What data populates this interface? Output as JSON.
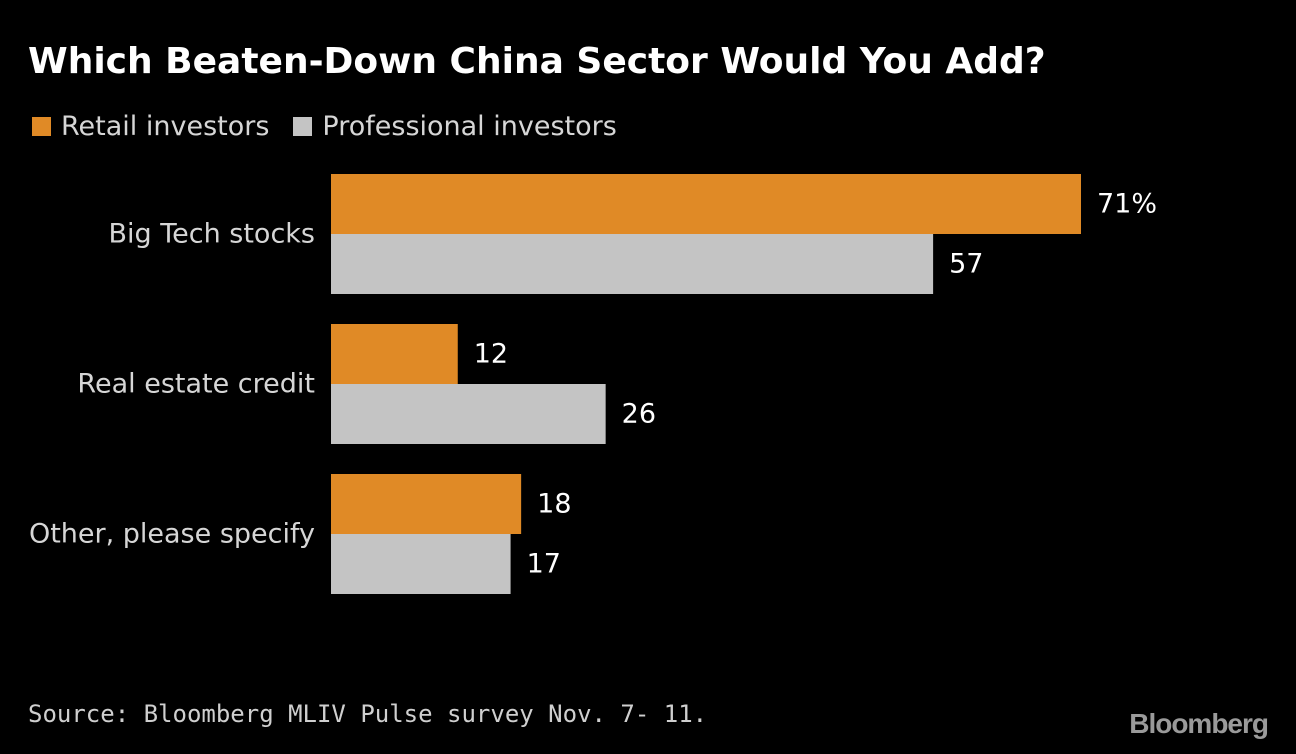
{
  "chart_data": {
    "type": "bar",
    "orientation": "horizontal",
    "title": "Which Beaten-Down China Sector Would You Add?",
    "categories": [
      "Big Tech stocks",
      "Real estate credit",
      "Other, please specify"
    ],
    "series": [
      {
        "name": "Retail investors",
        "color": "#e08a26",
        "values": [
          71,
          12,
          18
        ],
        "labels": [
          "71%",
          "12",
          "18"
        ]
      },
      {
        "name": "Professional investors",
        "color": "#c4c4c4",
        "values": [
          57,
          26,
          17
        ],
        "labels": [
          "57",
          "26",
          "17"
        ]
      }
    ],
    "xlim": [
      0,
      100
    ],
    "grid": false,
    "legend_position": "top-left"
  },
  "footer": {
    "source": "Source: Bloomberg MLIV Pulse survey Nov. 7- 11.",
    "brand": "Bloomberg"
  }
}
